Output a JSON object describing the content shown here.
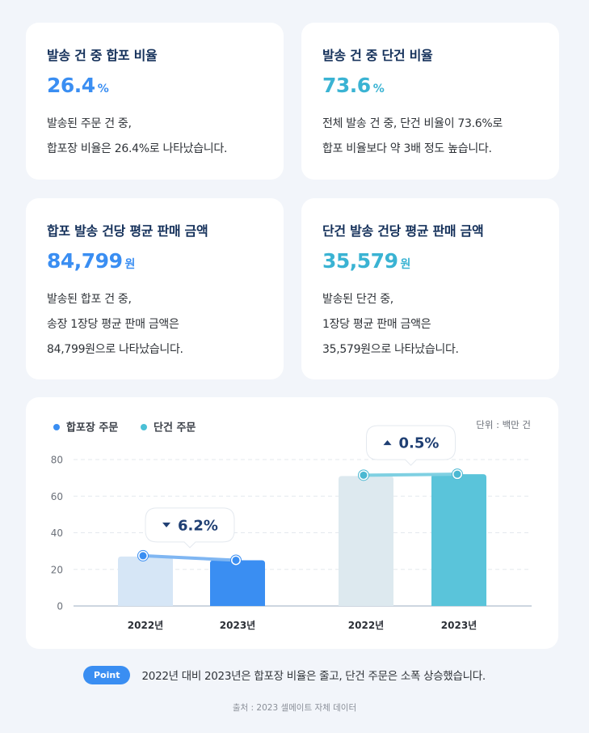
{
  "cards": [
    {
      "title": "발송 건 중 합포 비율",
      "value": "26.4",
      "unit": "%",
      "desc": [
        "발송된 주문 건 중,",
        "합포장 비율은 26.4%로 나타났습니다."
      ],
      "color": "#3a8ef2"
    },
    {
      "title": "발송 건 중 단건 비율",
      "value": "73.6",
      "unit": "%",
      "desc": [
        "전체 발송 건 중, 단건 비율이 73.6%로",
        "합포 비율보다 약 3배 정도 높습니다."
      ],
      "color": "#3ab3d3"
    },
    {
      "title": "합포 발송 건당 평균 판매 금액",
      "value": "84,799",
      "unit": "원",
      "desc": [
        "발송된 합포 건 중,",
        "송장 1장당 평균 판매 금액은",
        "84,799원으로 나타났습니다."
      ],
      "color": "#3a8ef2"
    },
    {
      "title": "단건 발송 건당 평균 판매 금액",
      "value": "35,579",
      "unit": "원",
      "desc": [
        "발송된 단건 중,",
        "1장당 평균 판매 금액은",
        "35,579원으로 나타났습니다."
      ],
      "color": "#3ab3d3"
    }
  ],
  "chart_data": {
    "type": "bar",
    "legend": [
      {
        "name": "합포장 주문",
        "color": "#3a8ef2"
      },
      {
        "name": "단건 주문",
        "color": "#4bc0d6"
      }
    ],
    "unit_label": "단위 : 백만 건",
    "ylim": [
      0,
      80
    ],
    "yticks": [
      0,
      20,
      40,
      60,
      80
    ],
    "groups": [
      {
        "series": "합포장 주문",
        "bars": [
          {
            "x": "2022년",
            "value": 27,
            "color": "#d6e6f6"
          },
          {
            "x": "2023년",
            "value": 25,
            "color": "#3a8ef2"
          }
        ],
        "change": "6.2%",
        "direction": "down"
      },
      {
        "series": "단건 주문",
        "bars": [
          {
            "x": "2022년",
            "value": 71,
            "color": "#dde9ef"
          },
          {
            "x": "2023년",
            "value": 72,
            "color": "#5ac4da"
          }
        ],
        "change": "0.5%",
        "direction": "up"
      }
    ]
  },
  "point": {
    "badge": "Point",
    "text": "2022년 대비 2023년은 합포장 비율은 줄고, 단건 주문은 소폭 상승했습니다."
  },
  "source": "출처 : 2023 셀메이트 자체 데이터"
}
